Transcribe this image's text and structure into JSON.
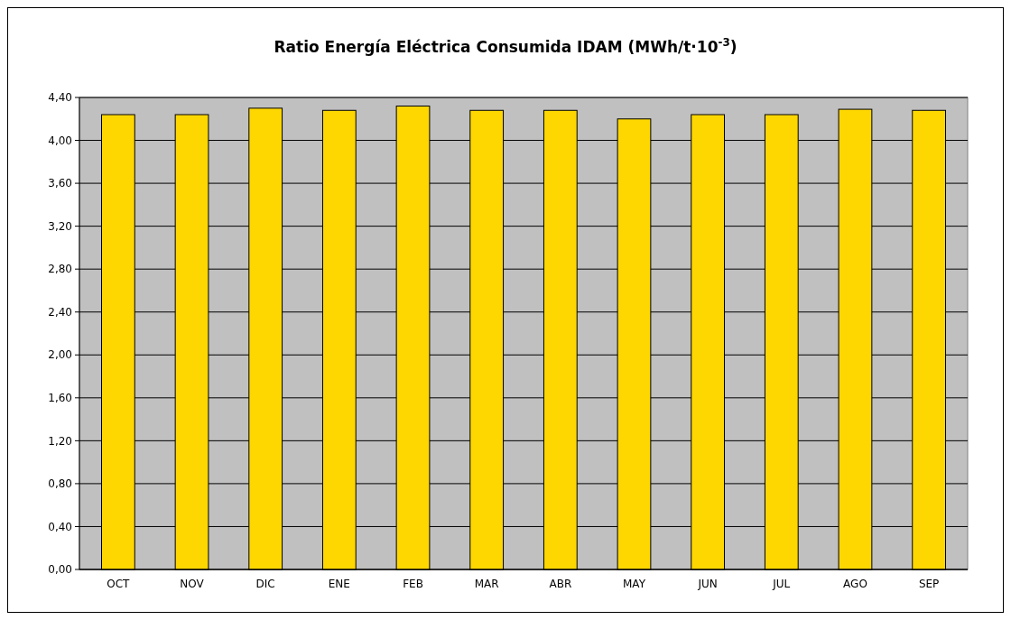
{
  "chart_data": {
    "type": "bar",
    "title": "Ratio Energía Eléctrica Consumida IDAM (MWh/t·10$^{-3}$)",
    "categories": [
      "OCT",
      "NOV",
      "DIC",
      "ENE",
      "FEB",
      "MAR",
      "ABR",
      "MAY",
      "JUN",
      "JUL",
      "AGO",
      "SEP"
    ],
    "values": [
      4.24,
      4.24,
      4.3,
      4.28,
      4.32,
      4.28,
      4.28,
      4.2,
      4.24,
      4.24,
      4.29,
      4.28
    ],
    "color": "#ffd700",
    "ylim": [
      0,
      4.4
    ],
    "yticks": [
      {
        "value": 0,
        "label": "0,00"
      },
      {
        "value": 0.4,
        "label": "0,40"
      },
      {
        "value": 0.8,
        "label": "0,80"
      },
      {
        "value": 1.2,
        "label": "1,20"
      },
      {
        "value": 1.6,
        "label": "1,60"
      },
      {
        "value": 2,
        "label": "2,00"
      },
      {
        "value": 2.4,
        "label": "2,40"
      },
      {
        "value": 2.8,
        "label": "2,80"
      },
      {
        "value": 3.2,
        "label": "3,20"
      },
      {
        "value": 3.6,
        "label": "3,60"
      },
      {
        "value": 4,
        "label": "4,00"
      },
      {
        "value": 4.4,
        "label": "4,40"
      }
    ],
    "grid": "y"
  }
}
